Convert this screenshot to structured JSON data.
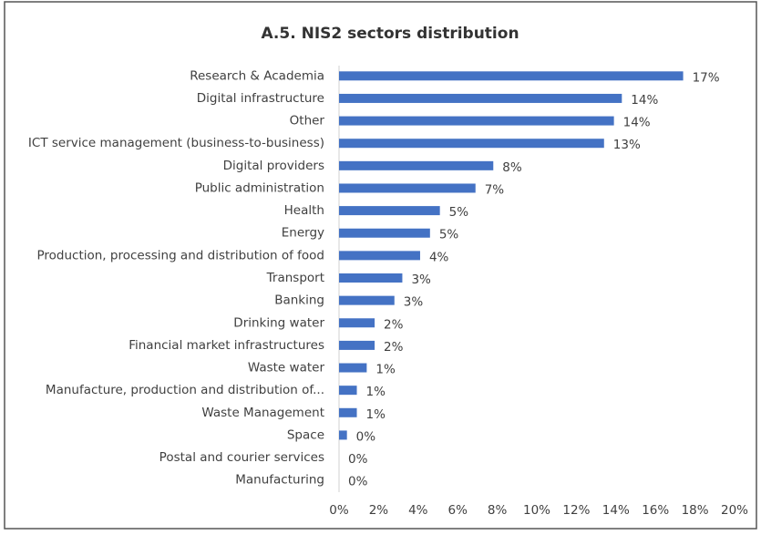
{
  "chart_data": {
    "type": "barh",
    "title": "A.5. NIS2 sectors distribution",
    "categories": [
      "Research & Academia",
      "Digital infrastructure",
      "Other",
      "ICT service management (business-to-business)",
      "Digital providers",
      "Public administration",
      "Health",
      "Energy",
      "Production, processing and distribution of food",
      "Transport",
      "Banking",
      "Drinking water",
      "Financial market infrastructures",
      "Waste water",
      "Manufacture, production and distribution of...",
      "Waste Management",
      "Space",
      "Postal and courier services",
      "Manufacturing"
    ],
    "values": [
      17.4,
      14.3,
      13.9,
      13.4,
      7.8,
      6.9,
      5.1,
      4.6,
      4.1,
      3.2,
      2.8,
      1.8,
      1.8,
      1.4,
      0.9,
      0.9,
      0.4,
      0,
      0
    ],
    "value_labels": [
      "17%",
      "14%",
      "14%",
      "13%",
      "8%",
      "7%",
      "5%",
      "5%",
      "4%",
      "3%",
      "3%",
      "2%",
      "2%",
      "1%",
      "1%",
      "1%",
      "0%",
      "0%",
      "0%"
    ],
    "color": "#4472c4",
    "xlim": [
      0,
      20
    ],
    "xticks": [
      {
        "value": 0,
        "label": "0%"
      },
      {
        "value": 2,
        "label": "2%"
      },
      {
        "value": 4,
        "label": "4%"
      },
      {
        "value": 6,
        "label": "6%"
      },
      {
        "value": 8,
        "label": "8%"
      },
      {
        "value": 10,
        "label": "10%"
      },
      {
        "value": 12,
        "label": "12%"
      },
      {
        "value": 14,
        "label": "14%"
      },
      {
        "value": 16,
        "label": "16%"
      },
      {
        "value": 18,
        "label": "18%"
      },
      {
        "value": 20,
        "label": "20%"
      }
    ],
    "grid": false
  }
}
